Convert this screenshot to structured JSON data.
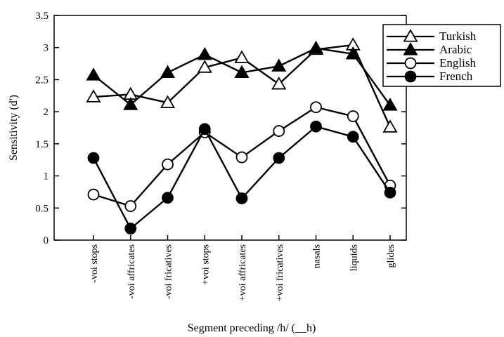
{
  "chart_data": {
    "type": "line",
    "title": "",
    "xlabel": "Segment preceding /h/ (__h)",
    "ylabel": "Sensitivity (d')",
    "ylim": [
      0,
      3.5
    ],
    "yticks": [
      "0",
      "0.5",
      "1",
      "1.5",
      "2",
      "2.5",
      "3",
      "3.5"
    ],
    "categories": [
      "-voi stops",
      "-voi affricates",
      "-voi fricatives",
      "+voi stops",
      "+voi affricates",
      "+voi fricatives",
      "nasals",
      "liquids",
      "glides"
    ],
    "legend_position": "top-right",
    "grid": false,
    "series": [
      {
        "name": "Turkish",
        "marker": "open-triangle",
        "values": [
          2.23,
          2.27,
          2.14,
          2.69,
          2.84,
          2.43,
          2.97,
          3.04,
          1.76
        ]
      },
      {
        "name": "Arabic",
        "marker": "filled-triangle",
        "values": [
          2.57,
          2.11,
          2.61,
          2.89,
          2.61,
          2.71,
          2.99,
          2.9,
          2.1
        ]
      },
      {
        "name": "English",
        "marker": "open-circle",
        "values": [
          0.71,
          0.53,
          1.18,
          1.68,
          1.29,
          1.7,
          2.07,
          1.93,
          0.85
        ]
      },
      {
        "name": "French",
        "marker": "filled-circle",
        "values": [
          1.28,
          0.18,
          0.66,
          1.73,
          0.65,
          1.28,
          1.77,
          1.61,
          0.74
        ]
      }
    ]
  }
}
